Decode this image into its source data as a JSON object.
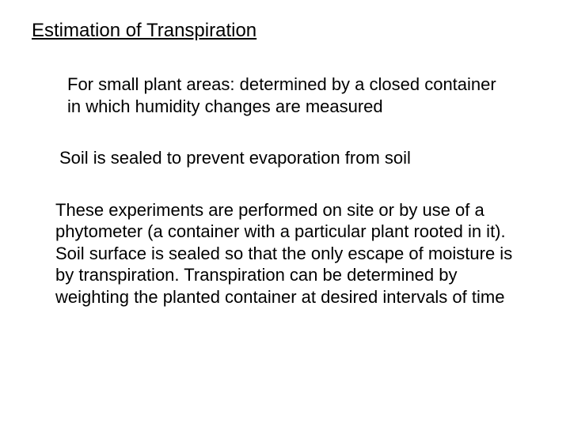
{
  "title": "Estimation of Transpiration",
  "paragraph1": "For small plant areas: determined by a closed container in which humidity changes are measured",
  "paragraph2": "Soil is sealed to prevent evaporation from soil",
  "paragraph3": "These experiments are performed on site or by use of a phytometer (a container with a particular plant rooted in it). Soil surface is sealed so that the only escape of moisture is by transpiration. Transpiration can be determined by weighting the planted container at desired intervals of time",
  "colors": {
    "background": "#ffffff",
    "text": "#000000"
  },
  "typography": {
    "font_family": "Comic Sans MS",
    "title_fontsize": 24,
    "body_fontsize": 22
  }
}
